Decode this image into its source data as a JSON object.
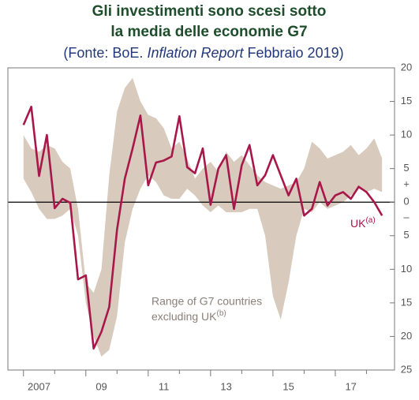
{
  "chart_data": {
    "type": "line-band",
    "title": [
      "Gli investimenti sono scesi sotto",
      "la media delle economie G7"
    ],
    "subtitle": [
      "(Fonte: BoE.",
      "Inflation Report",
      "Febbraio 2019)"
    ],
    "x": [
      2007,
      2007.25,
      2007.5,
      2007.75,
      2008,
      2008.25,
      2008.5,
      2008.75,
      2009,
      2009.25,
      2009.5,
      2009.75,
      2010,
      2010.25,
      2010.5,
      2010.75,
      2011,
      2011.25,
      2011.5,
      2011.75,
      2012,
      2012.25,
      2012.5,
      2012.75,
      2013,
      2013.25,
      2013.5,
      2013.75,
      2014,
      2014.25,
      2014.5,
      2014.75,
      2015,
      2015.25,
      2015.5,
      2015.75,
      2016,
      2016.25,
      2016.5,
      2016.75,
      2017,
      2017.25,
      2017.5,
      2017.75,
      2018,
      2018.25,
      2018.5
    ],
    "series": [
      {
        "name": "UK",
        "name_sup": "(a)",
        "color": "#a8174a",
        "values": [
          11.5,
          14.2,
          3.9,
          10,
          -0.9,
          0.5,
          -0.1,
          -11.5,
          -10.9,
          -21.8,
          -19.3,
          -15.6,
          -4.1,
          3.5,
          8,
          12.9,
          2.5,
          5.9,
          6.2,
          6.8,
          12.8,
          5.2,
          4.3,
          8,
          -0.4,
          5,
          7,
          -1,
          5.5,
          8.5,
          2.5,
          4,
          7,
          4,
          1,
          3.5,
          -2,
          -1,
          3,
          -0.5,
          1,
          1.5,
          0.5,
          2.3,
          1.5,
          0,
          -2
        ]
      },
      {
        "name_lines": [
          "Range of G7 countries",
          "excluding UK"
        ],
        "name_sup": "(b)",
        "color": "#d8cbbd",
        "upper": [
          10,
          8,
          7.5,
          8.5,
          8,
          6,
          5,
          -1,
          -12,
          -13.5,
          -10,
          4,
          13.5,
          17,
          18.5,
          15,
          13,
          12.5,
          11,
          8,
          9,
          6.5,
          3.5,
          5,
          6,
          4.5,
          7.5,
          6,
          7,
          5.5,
          4,
          3,
          2.5,
          2,
          2.5,
          3,
          5,
          9,
          8,
          6.5,
          7,
          7.5,
          8.5,
          7,
          8,
          9.5,
          6.5
        ],
        "lower": [
          3.5,
          1.5,
          -1,
          -2.5,
          -2.5,
          -2,
          -1,
          -5,
          -15,
          -20,
          -23,
          -22,
          -17,
          -6,
          -1,
          2,
          4,
          3,
          1,
          0.5,
          0.5,
          2,
          1,
          -0.5,
          -1.5,
          -0.5,
          -1.5,
          -1.5,
          -1.5,
          -1,
          -1,
          -5,
          -14,
          -17.5,
          -12,
          -5,
          -1,
          -1.5,
          0,
          -1,
          -0.5,
          0,
          1,
          2,
          1.5,
          2,
          1.5
        ]
      }
    ],
    "xlim": [
      2006.5,
      2018.9
    ],
    "xticks": [
      {
        "value": 2007,
        "label": "2007"
      },
      {
        "value": 2009,
        "label": "09"
      },
      {
        "value": 2011,
        "label": "11"
      },
      {
        "value": 2013,
        "label": "13"
      },
      {
        "value": 2015,
        "label": "15"
      },
      {
        "value": 2017,
        "label": "17"
      }
    ],
    "ylim": [
      -25,
      20
    ],
    "yticks": [
      20,
      15,
      10,
      5,
      0,
      {
        "value": -5,
        "label": "5"
      },
      {
        "value": -10,
        "label": "10"
      },
      {
        "value": -15,
        "label": "15"
      },
      {
        "value": -20,
        "label": "20"
      },
      {
        "value": -25,
        "label": "25"
      }
    ],
    "sign_labels": [
      "+",
      "–"
    ]
  }
}
